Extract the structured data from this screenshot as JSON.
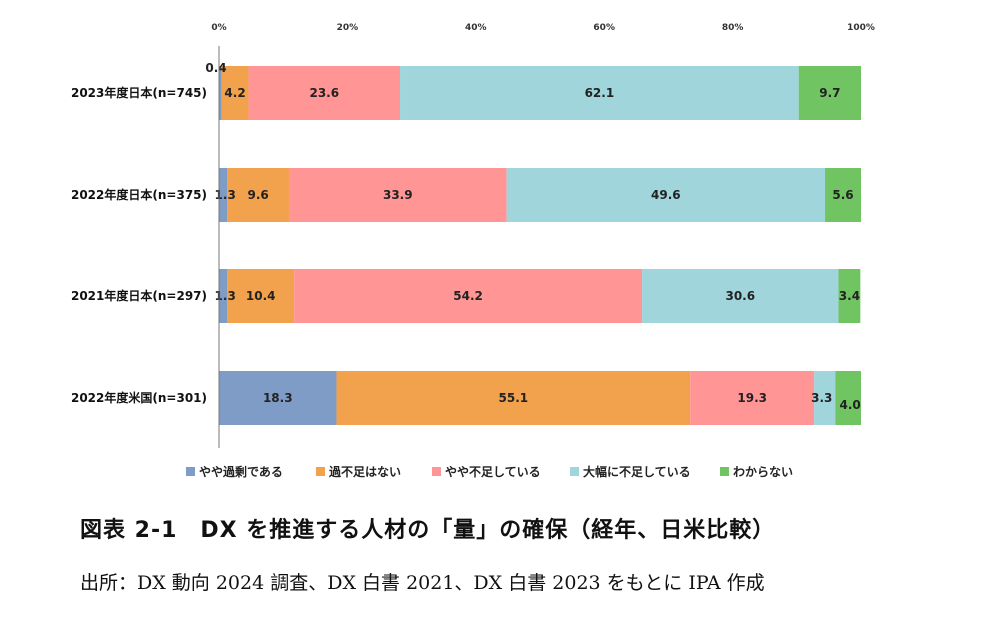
{
  "chart_data": {
    "type": "bar",
    "orientation": "horizontal-stacked-100",
    "x_ticks": [
      "0%",
      "20%",
      "40%",
      "60%",
      "80%",
      "100%"
    ],
    "xlim": [
      0,
      100
    ],
    "legend_position": "bottom",
    "categories": [
      "2023年度日本(n=745)",
      "2022年度日本(n=375)",
      "2021年度日本(n=297)",
      "2022年度米国(n=301)"
    ],
    "series": [
      {
        "name": "やや過剰である",
        "color": "#7f9cc6",
        "values": [
          0.4,
          1.3,
          1.3,
          18.3
        ]
      },
      {
        "name": "過不足はない",
        "color": "#f2a24c",
        "values": [
          4.2,
          9.6,
          10.4,
          55.1
        ]
      },
      {
        "name": "やや不足している",
        "color": "#ff9595",
        "values": [
          23.6,
          33.9,
          54.2,
          19.3
        ]
      },
      {
        "name": "大幅に不足している",
        "color": "#9fd5db",
        "values": [
          62.1,
          49.6,
          30.6,
          3.3
        ]
      },
      {
        "name": "わからない",
        "color": "#70c462",
        "values": [
          9.7,
          5.6,
          3.4,
          4.0
        ]
      }
    ],
    "data_labels": [
      [
        "0.4",
        "4.2",
        "23.6",
        "62.1",
        "9.7"
      ],
      [
        "1.3",
        "9.6",
        "33.9",
        "49.6",
        "5.6"
      ],
      [
        "1.3",
        "10.4",
        "54.2",
        "30.6",
        "3.4"
      ],
      [
        "18.3",
        "55.1",
        "19.3",
        "3.3",
        "4.0"
      ]
    ]
  },
  "figure": {
    "title": "図表 2-1　DX を推進する人材の「量」の確保（経年、日米比較）",
    "source": "出所：DX 動向 2024 調査、DX 白書 2021、DX 白書 2023 をもとに IPA 作成"
  }
}
